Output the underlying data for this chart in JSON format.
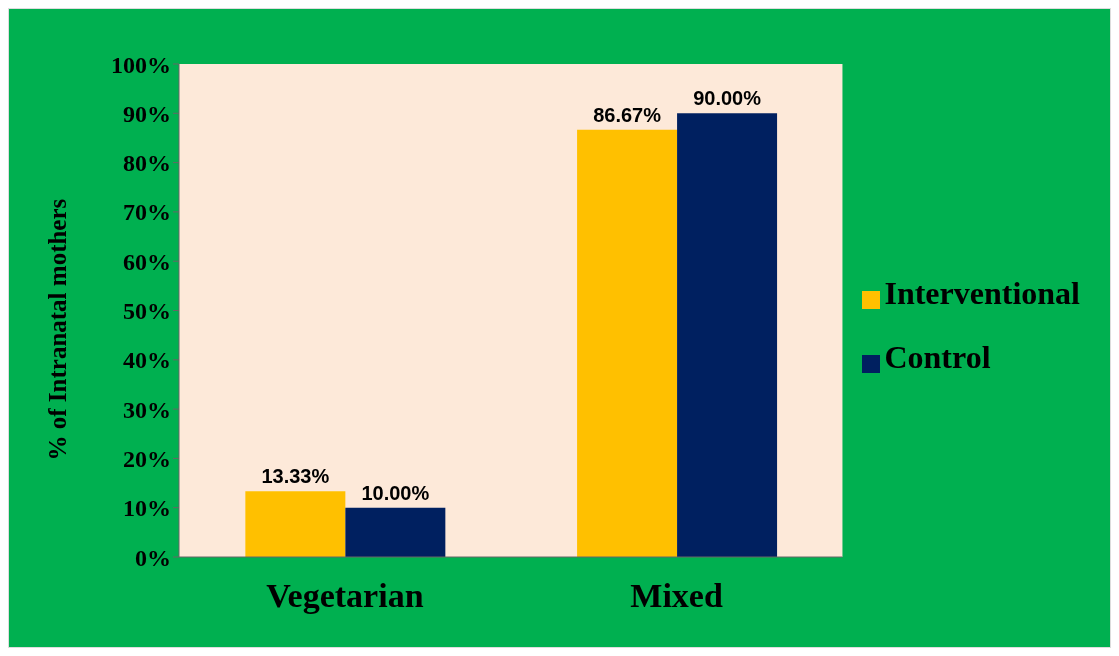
{
  "chart_data": {
    "type": "bar",
    "ylabel": "% of Intranatal mothers",
    "categories": [
      "Vegetarian",
      "Mixed"
    ],
    "series": [
      {
        "name": "Interventional",
        "color": "#ffc000",
        "values": [
          13.33,
          86.67
        ],
        "value_labels": [
          "13.33%",
          "86.67%"
        ]
      },
      {
        "name": "Control",
        "color": "#002060",
        "values": [
          10,
          90
        ],
        "value_labels": [
          "10.00%",
          "90.00%"
        ]
      }
    ],
    "ylim": [
      0,
      100
    ],
    "yticks": [
      {
        "value": 0,
        "label": "0%"
      },
      {
        "value": 10,
        "label": "10%"
      },
      {
        "value": 20,
        "label": "20%"
      },
      {
        "value": 30,
        "label": "30%"
      },
      {
        "value": 40,
        "label": "40%"
      },
      {
        "value": 50,
        "label": "50%"
      },
      {
        "value": 60,
        "label": "60%"
      },
      {
        "value": 70,
        "label": "70%"
      },
      {
        "value": 80,
        "label": "80%"
      },
      {
        "value": 90,
        "label": "90%"
      },
      {
        "value": 100,
        "label": "100%"
      }
    ],
    "grid": false,
    "legend": "right"
  }
}
